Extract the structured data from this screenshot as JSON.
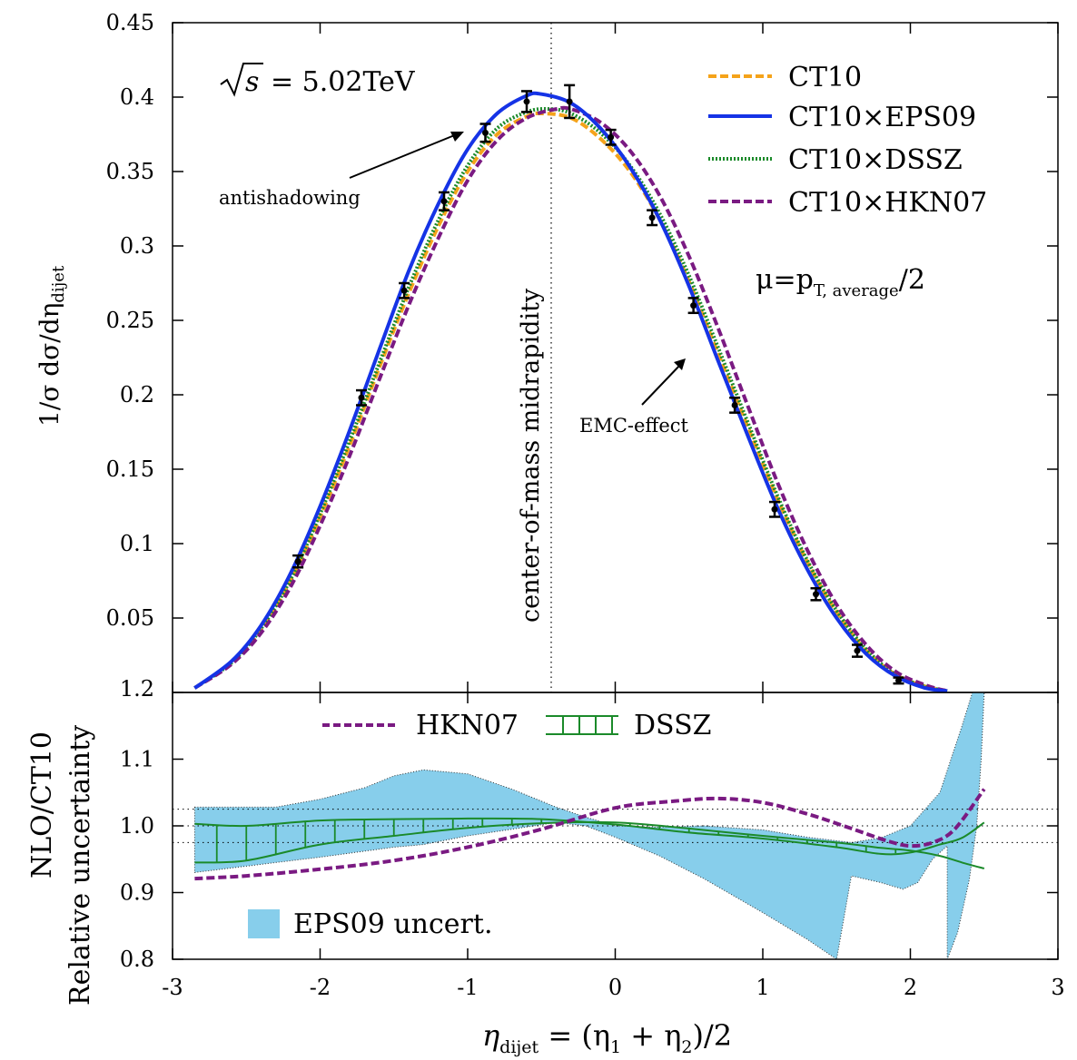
{
  "chart_data": [
    {
      "type": "line",
      "ylabel": "1/σ dσ/dη",
      "ylabel_sub": "dijet",
      "xlim": [
        -3,
        3
      ],
      "ylim": [
        0,
        0.45
      ],
      "y_ticks": [
        "0.05",
        "0.1",
        "0.15",
        "0.2",
        "0.25",
        "0.3",
        "0.35",
        "0.4",
        "0.45"
      ],
      "energy_label": "= 5.02TeV",
      "scale_label": "μ=p",
      "scale_sub": "T, average",
      "scale_suffix": "/2",
      "midrapidity_label": "center-of-mass midrapidity",
      "annotations": {
        "antishadowing": "antishadowing",
        "emc": "EMC-effect"
      },
      "series": [
        {
          "name": "CT10",
          "color": "#f5a31a",
          "style": "dashed",
          "points": [
            [
              -2.85,
              0.003
            ],
            [
              -2.6,
              0.02
            ],
            [
              -2.4,
              0.042
            ],
            [
              -2.2,
              0.075
            ],
            [
              -2.0,
              0.118
            ],
            [
              -1.8,
              0.166
            ],
            [
              -1.6,
              0.218
            ],
            [
              -1.4,
              0.268
            ],
            [
              -1.2,
              0.313
            ],
            [
              -1.0,
              0.35
            ],
            [
              -0.8,
              0.375
            ],
            [
              -0.6,
              0.387
            ],
            [
              -0.5,
              0.389
            ],
            [
              -0.3,
              0.386
            ],
            [
              -0.1,
              0.372
            ],
            [
              0.1,
              0.35
            ],
            [
              0.3,
              0.318
            ],
            [
              0.5,
              0.276
            ],
            [
              0.7,
              0.227
            ],
            [
              0.9,
              0.178
            ],
            [
              1.1,
              0.13
            ],
            [
              1.3,
              0.088
            ],
            [
              1.5,
              0.054
            ],
            [
              1.7,
              0.028
            ],
            [
              1.9,
              0.012
            ],
            [
              2.1,
              0.004
            ],
            [
              2.25,
              0.001
            ]
          ]
        },
        {
          "name": "CT10×EPS09",
          "color": "#1533e6",
          "style": "solid",
          "points": [
            [
              -2.85,
              0.003
            ],
            [
              -2.6,
              0.021
            ],
            [
              -2.4,
              0.045
            ],
            [
              -2.2,
              0.08
            ],
            [
              -2.0,
              0.125
            ],
            [
              -1.8,
              0.176
            ],
            [
              -1.6,
              0.23
            ],
            [
              -1.4,
              0.283
            ],
            [
              -1.2,
              0.328
            ],
            [
              -1.0,
              0.365
            ],
            [
              -0.8,
              0.389
            ],
            [
              -0.6,
              0.401
            ],
            [
              -0.5,
              0.402
            ],
            [
              -0.3,
              0.396
            ],
            [
              -0.1,
              0.379
            ],
            [
              0.1,
              0.353
            ],
            [
              0.3,
              0.318
            ],
            [
              0.5,
              0.273
            ],
            [
              0.7,
              0.222
            ],
            [
              0.9,
              0.172
            ],
            [
              1.1,
              0.124
            ],
            [
              1.3,
              0.083
            ],
            [
              1.5,
              0.05
            ],
            [
              1.7,
              0.026
            ],
            [
              1.9,
              0.011
            ],
            [
              2.1,
              0.003
            ],
            [
              2.25,
              0.001
            ]
          ]
        },
        {
          "name": "CT10×DSSZ",
          "color": "#1b8a2a",
          "style": "dotted",
          "points": [
            [
              -2.85,
              0.003
            ],
            [
              -2.6,
              0.02
            ],
            [
              -2.4,
              0.043
            ],
            [
              -2.2,
              0.076
            ],
            [
              -2.0,
              0.12
            ],
            [
              -1.8,
              0.169
            ],
            [
              -1.6,
              0.221
            ],
            [
              -1.4,
              0.272
            ],
            [
              -1.2,
              0.317
            ],
            [
              -1.0,
              0.354
            ],
            [
              -0.8,
              0.379
            ],
            [
              -0.6,
              0.39
            ],
            [
              -0.45,
              0.392
            ],
            [
              -0.3,
              0.389
            ],
            [
              -0.1,
              0.376
            ],
            [
              0.1,
              0.354
            ],
            [
              0.3,
              0.322
            ],
            [
              0.5,
              0.28
            ],
            [
              0.7,
              0.231
            ],
            [
              0.9,
              0.181
            ],
            [
              1.1,
              0.132
            ],
            [
              1.3,
              0.089
            ],
            [
              1.5,
              0.055
            ],
            [
              1.7,
              0.029
            ],
            [
              1.9,
              0.012
            ],
            [
              2.1,
              0.004
            ],
            [
              2.25,
              0.001
            ]
          ]
        },
        {
          "name": "CT10×HKN07",
          "color": "#7a1a82",
          "style": "dashed",
          "points": [
            [
              -2.85,
              0.003
            ],
            [
              -2.6,
              0.019
            ],
            [
              -2.4,
              0.04
            ],
            [
              -2.2,
              0.071
            ],
            [
              -2.0,
              0.112
            ],
            [
              -1.8,
              0.159
            ],
            [
              -1.6,
              0.21
            ],
            [
              -1.4,
              0.26
            ],
            [
              -1.2,
              0.305
            ],
            [
              -1.0,
              0.344
            ],
            [
              -0.8,
              0.371
            ],
            [
              -0.6,
              0.386
            ],
            [
              -0.4,
              0.392
            ],
            [
              -0.3,
              0.392
            ],
            [
              -0.1,
              0.383
            ],
            [
              0.1,
              0.364
            ],
            [
              0.3,
              0.334
            ],
            [
              0.5,
              0.293
            ],
            [
              0.7,
              0.244
            ],
            [
              0.9,
              0.192
            ],
            [
              1.1,
              0.141
            ],
            [
              1.3,
              0.096
            ],
            [
              1.5,
              0.059
            ],
            [
              1.7,
              0.032
            ],
            [
              1.9,
              0.014
            ],
            [
              2.1,
              0.005
            ],
            [
              2.25,
              0.001
            ]
          ]
        }
      ],
      "data_points": [
        {
          "x": -2.15,
          "y": 0.088,
          "err": 0.004
        },
        {
          "x": -1.72,
          "y": 0.198,
          "err": 0.005
        },
        {
          "x": -1.43,
          "y": 0.27,
          "err": 0.005
        },
        {
          "x": -1.16,
          "y": 0.33,
          "err": 0.006
        },
        {
          "x": -0.88,
          "y": 0.376,
          "err": 0.006
        },
        {
          "x": -0.6,
          "y": 0.397,
          "err": 0.007
        },
        {
          "x": -0.31,
          "y": 0.397,
          "err": 0.011
        },
        {
          "x": -0.03,
          "y": 0.373,
          "err": 0.005
        },
        {
          "x": 0.25,
          "y": 0.319,
          "err": 0.005
        },
        {
          "x": 0.53,
          "y": 0.26,
          "err": 0.005
        },
        {
          "x": 0.81,
          "y": 0.193,
          "err": 0.005
        },
        {
          "x": 1.08,
          "y": 0.123,
          "err": 0.005
        },
        {
          "x": 1.36,
          "y": 0.066,
          "err": 0.004
        },
        {
          "x": 1.64,
          "y": 0.028,
          "err": 0.004
        },
        {
          "x": 1.92,
          "y": 0.008,
          "err": 0.002
        }
      ]
    },
    {
      "type": "line",
      "ylabel": "NLO/CT10",
      "ylabel2": "Relative uncertainty",
      "xlabel_pre": "η",
      "xlabel_sub": "dijet",
      "xlabel_post": " = (η",
      "xlabel_sub1": "1",
      "xlabel_mid": " + η",
      "xlabel_sub2": "2",
      "xlabel_end": ")/2",
      "xlim": [
        -3,
        3
      ],
      "ylim": [
        0.8,
        1.2
      ],
      "x_ticks": [
        "-3",
        "-2",
        "-1",
        "0",
        "1",
        "2",
        "3"
      ],
      "y_ticks": [
        "0.8",
        "0.9",
        "1.0",
        "1.1",
        "1.2"
      ],
      "ref_lines": [
        0.975,
        1.0,
        1.025
      ],
      "legend": {
        "hkn": "HKN07",
        "dssz": "DSSZ",
        "eps": "EPS09 uncert."
      },
      "series": [
        {
          "name": "HKN07",
          "color": "#7a1a82",
          "style": "dashed",
          "points": [
            [
              -2.85,
              0.921
            ],
            [
              -2.5,
              0.925
            ],
            [
              -2.0,
              0.935
            ],
            [
              -1.5,
              0.948
            ],
            [
              -1.0,
              0.968
            ],
            [
              -0.5,
              0.995
            ],
            [
              0.0,
              1.027
            ],
            [
              0.4,
              1.037
            ],
            [
              0.7,
              1.041
            ],
            [
              1.0,
              1.035
            ],
            [
              1.3,
              1.018
            ],
            [
              1.6,
              0.996
            ],
            [
              1.85,
              0.977
            ],
            [
              2.0,
              0.97
            ],
            [
              2.15,
              0.975
            ],
            [
              2.3,
              0.995
            ],
            [
              2.5,
              1.055
            ]
          ]
        },
        {
          "name": "DSSZ",
          "color": "#1b8a2a",
          "style": "band",
          "upper": [
            [
              -2.85,
              1.003
            ],
            [
              -2.5,
              1.0
            ],
            [
              -2.0,
              1.008
            ],
            [
              -1.5,
              1.01
            ],
            [
              -1.0,
              1.011
            ],
            [
              -0.5,
              1.01
            ],
            [
              0.0,
              1.002
            ],
            [
              0.5,
              0.99
            ],
            [
              1.0,
              0.981
            ],
            [
              1.5,
              0.968
            ],
            [
              1.8,
              0.958
            ],
            [
              2.0,
              0.96
            ],
            [
              2.2,
              0.972
            ],
            [
              2.35,
              0.982
            ],
            [
              2.5,
              1.005
            ]
          ],
          "lower": [
            [
              -2.85,
              0.945
            ],
            [
              -2.5,
              0.948
            ],
            [
              -2.0,
              0.972
            ],
            [
              -1.5,
              0.985
            ],
            [
              -1.0,
              0.997
            ],
            [
              -0.5,
              1.004
            ],
            [
              0.0,
              1.005
            ],
            [
              0.5,
              0.996
            ],
            [
              1.0,
              0.985
            ],
            [
              1.5,
              0.975
            ],
            [
              1.8,
              0.967
            ],
            [
              2.0,
              0.963
            ],
            [
              2.2,
              0.955
            ],
            [
              2.35,
              0.945
            ],
            [
              2.5,
              0.936
            ]
          ]
        }
      ],
      "eps09_band": {
        "name": "EPS09 uncert.",
        "color": "#87ceeb",
        "upper": [
          [
            -2.85,
            1.028
          ],
          [
            -2.3,
            1.028
          ],
          [
            -2.0,
            1.04
          ],
          [
            -1.7,
            1.057
          ],
          [
            -1.5,
            1.075
          ],
          [
            -1.3,
            1.084
          ],
          [
            -1.0,
            1.078
          ],
          [
            -0.7,
            1.055
          ],
          [
            -0.4,
            1.028
          ],
          [
            -0.2,
            1.013
          ],
          [
            0.0,
            1.0
          ],
          [
            0.3,
            0.998
          ],
          [
            0.6,
            1.0
          ],
          [
            1.0,
            0.994
          ],
          [
            1.3,
            0.983
          ],
          [
            1.6,
            0.975
          ],
          [
            1.8,
            0.982
          ],
          [
            2.0,
            1.0
          ],
          [
            2.2,
            1.05
          ],
          [
            2.35,
            1.15
          ],
          [
            2.42,
            1.2
          ]
        ],
        "lower": [
          [
            -2.85,
            0.93
          ],
          [
            -2.3,
            0.945
          ],
          [
            -2.0,
            0.953
          ],
          [
            -1.7,
            0.962
          ],
          [
            -1.5,
            0.968
          ],
          [
            -1.3,
            0.972
          ],
          [
            -1.0,
            0.985
          ],
          [
            -0.7,
            0.995
          ],
          [
            -0.4,
            1.005
          ],
          [
            -0.2,
            1.0
          ],
          [
            0.0,
            0.983
          ],
          [
            0.3,
            0.955
          ],
          [
            0.6,
            0.921
          ],
          [
            1.0,
            0.87
          ],
          [
            1.3,
            0.83
          ],
          [
            1.5,
            0.8
          ]
        ],
        "lower_tail": [
          [
            2.25,
            0.8
          ],
          [
            2.32,
            0.84
          ],
          [
            2.4,
            0.92
          ],
          [
            2.45,
            1.0
          ],
          [
            2.48,
            1.1
          ],
          [
            2.5,
            1.2
          ]
        ],
        "mid_lower": [
          [
            1.5,
            0.8
          ],
          [
            1.6,
            0.925
          ],
          [
            1.8,
            0.915
          ],
          [
            1.95,
            0.905
          ],
          [
            2.05,
            0.915
          ],
          [
            2.15,
            0.95
          ],
          [
            2.25,
            0.97
          ]
        ]
      }
    }
  ]
}
